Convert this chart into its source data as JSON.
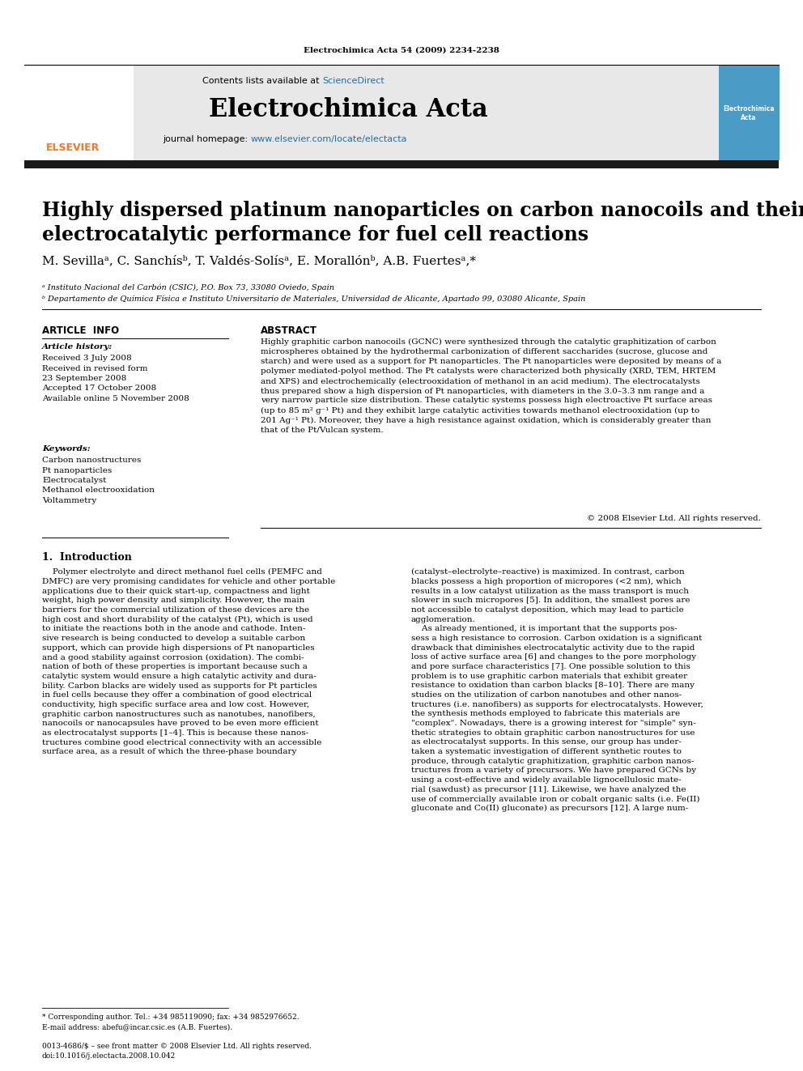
{
  "journal_ref": "Electrochimica Acta 54 (2009) 2234-2238",
  "contents_text": "Contents lists available at ",
  "sciencedirect_text": "ScienceDirect",
  "journal_name": "Electrochimica Acta",
  "journal_homepage": "journal homepage: ",
  "homepage_url": "www.elsevier.com/locate/electacta",
  "paper_title": "Highly dispersed platinum nanoparticles on carbon nanocoils and their\nelectrocatalytic performance for fuel cell reactions",
  "authors": "M. Sevillaᵃ, C. Sanchísᵇ, T. Valdés-Solísᵃ, E. Morallónᵇ, A.B. Fuertesᵃ,*",
  "affiliation_a": "ᵃ Instituto Nacional del Carbón (CSIC), P.O. Box 73, 33080 Oviedo, Spain",
  "affiliation_b": "ᵇ Departamento de Química Física e Instituto Universitario de Materiales, Universidad de Alicante, Apartado 99, 03080 Alicante, Spain",
  "article_info_title": "ARTICLE  INFO",
  "article_history_title": "Article history:",
  "article_history": "Received 3 July 2008\nReceived in revised form\n23 September 2008\nAccepted 17 October 2008\nAvailable online 5 November 2008",
  "keywords_title": "Keywords:",
  "keywords": "Carbon nanostructures\nPt nanoparticles\nElectrocatalyst\nMethanol electrooxidation\nVoltammetry",
  "abstract_title": "ABSTRACT",
  "abstract_text": "Highly graphitic carbon nanocoils (GCNC) were synthesized through the catalytic graphitization of carbon\nmicrospheres obtained by the hydrothermal carbonization of different saccharides (sucrose, glucose and\nstarch) and were used as a support for Pt nanoparticles. The Pt nanoparticles were deposited by means of a\npolymer mediated-polyol method. The Pt catalysts were characterized both physically (XRD, TEM, HRTEM\nand XPS) and electrochemically (electrooxidation of methanol in an acid medium). The electrocatalysts\nthus prepared show a high dispersion of Pt nanoparticles, with diameters in the 3.0–3.3 nm range and a\nvery narrow particle size distribution. These catalytic systems possess high electroactive Pt surface areas\n(up to 85 m² g⁻¹ Pt) and they exhibit large catalytic activities towards methanol electrooxidation (up to\n201 Ag⁻¹ Pt). Moreover, they have a high resistance against oxidation, which is considerably greater than\nthat of the Pt/Vulcan system.",
  "copyright_text": "© 2008 Elsevier Ltd. All rights reserved.",
  "intro_title": "1.  Introduction",
  "intro_col1": "    Polymer electrolyte and direct methanol fuel cells (PEMFC and\nDMFC) are very promising candidates for vehicle and other portable\napplications due to their quick start-up, compactness and light\nweight, high power density and simplicity. However, the main\nbarriers for the commercial utilization of these devices are the\nhigh cost and short durability of the catalyst (Pt), which is used\nto initiate the reactions both in the anode and cathode. Inten-\nsive research is being conducted to develop a suitable carbon\nsupport, which can provide high dispersions of Pt nanoparticles\nand a good stability against corrosion (oxidation). The combi-\nnation of both of these properties is important because such a\ncatalytic system would ensure a high catalytic activity and dura-\nbility. Carbon blacks are widely used as supports for Pt particles\nin fuel cells because they offer a combination of good electrical\nconductivity, high specific surface area and low cost. However,\ngraphitic carbon nanostructures such as nanotubes, nanofibers,\nnanocoils or nanocapsules have proved to be even more efficient\nas electrocatalyst supports [1–4]. This is because these nanos-\ntructures combine good electrical connectivity with an accessible\nsurface area, as a result of which the three-phase boundary",
  "intro_col2": "(catalyst–electrolyte–reactive) is maximized. In contrast, carbon\nblacks possess a high proportion of micropores (<2 nm), which\nresults in a low catalyst utilization as the mass transport is much\nslower in such micropores [5]. In addition, the smallest pores are\nnot accessible to catalyst deposition, which may lead to particle\nagglomeration.\n    As already mentioned, it is important that the supports pos-\nsess a high resistance to corrosion. Carbon oxidation is a significant\ndrawback that diminishes electrocatalytic activity due to the rapid\nloss of active surface area [6] and changes to the pore morphology\nand pore surface characteristics [7]. One possible solution to this\nproblem is to use graphitic carbon materials that exhibit greater\nresistance to oxidation than carbon blacks [8–10]. There are many\nstudies on the utilization of carbon nanotubes and other nanos-\ntructures (i.e. nanofibers) as supports for electrocatalysts. However,\nthe synthesis methods employed to fabricate this materials are\n\"complex\". Nowadays, there is a growing interest for \"simple\" syn-\nthetic strategies to obtain graphitic carbon nanostructures for use\nas electrocatalyst supports. In this sense, our group has under-\ntaken a systematic investigation of different synthetic routes to\nproduce, through catalytic graphitization, graphitic carbon nanos-\ntructures from a variety of precursors. We have prepared GCNs by\nusing a cost-effective and widely available lignocellulosic mate-\nrial (sawdust) as precursor [11]. Likewise, we have analyzed the\nuse of commercially available iron or cobalt organic salts (i.e. Fe(II)\ngluconate and Co(II) gluconate) as precursors [12]. A large num-",
  "footnote_star": "* Corresponding author. Tel.: +34 985119090; fax: +34 9852976652.",
  "footnote_email": "E-mail address: abefu@incar.csic.es (A.B. Fuertes).",
  "footer_issn": "0013-4686/$ – see front matter © 2008 Elsevier Ltd. All rights reserved.",
  "footer_doi": "doi:10.1016/j.electacta.2008.10.042",
  "bg_color": "#ffffff",
  "header_bg": "#e8e8e8",
  "dark_bar_color": "#1a1a1a",
  "blue_color": "#1a6faf",
  "orange_color": "#f47920"
}
